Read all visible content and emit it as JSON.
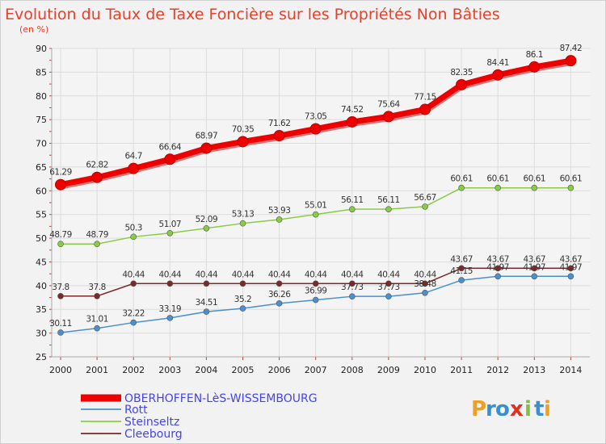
{
  "chart_data": {
    "type": "line",
    "title": "Evolution du Taux de Taxe Foncière sur les Propriétés Non Bâties",
    "subtitle": "(en %)",
    "ylim": [
      25,
      90
    ],
    "yticks": [
      "25",
      "30",
      "35",
      "40",
      "45",
      "50",
      "55",
      "60",
      "65",
      "70",
      "75",
      "80",
      "85",
      "90"
    ],
    "categories": [
      "2000",
      "2001",
      "2002",
      "2003",
      "2004",
      "2005",
      "2006",
      "2007",
      "2008",
      "2009",
      "2010",
      "2011",
      "2012",
      "2013",
      "2014"
    ],
    "series": [
      {
        "name": "OBERHOFFEN-LèS-WISSEMBOURG",
        "color": "#ee0000",
        "values": [
          61.29,
          62.82,
          64.7,
          66.64,
          68.97,
          70.35,
          71.62,
          73.05,
          74.52,
          75.64,
          77.15,
          82.35,
          84.41,
          86.1,
          87.42
        ],
        "labels": [
          "61.29",
          "62.82",
          "64.7",
          "66.64",
          "68.97",
          "70.35",
          "71.62",
          "73.05",
          "74.52",
          "75.64",
          "77.15",
          "82.35",
          "84.41",
          "86.1",
          "87.42"
        ]
      },
      {
        "name": "Rott",
        "color": "#4a90d0",
        "values": [
          30.11,
          31.01,
          32.22,
          33.19,
          34.51,
          35.2,
          36.26,
          36.99,
          37.73,
          37.73,
          38.48,
          41.15,
          41.97,
          41.97,
          41.97
        ],
        "labels": [
          "30.11",
          "31.01",
          "32.22",
          "33.19",
          "34.51",
          "35.2",
          "36.26",
          "36.99",
          "37.73",
          "37.73",
          "38.48",
          "41.15",
          "41.97",
          "41.97",
          "41.97"
        ]
      },
      {
        "name": "Steinseltz",
        "color": "#88cc44",
        "values": [
          48.79,
          48.79,
          50.3,
          51.07,
          52.09,
          53.13,
          53.93,
          55.01,
          56.11,
          56.11,
          56.67,
          60.61,
          60.61,
          60.61,
          60.61
        ],
        "labels": [
          "48.79",
          "48.79",
          "50.3",
          "51.07",
          "52.09",
          "53.13",
          "53.93",
          "55.01",
          "56.11",
          "56.11",
          "56.67",
          "60.61",
          "60.61",
          "60.61",
          "60.61"
        ]
      },
      {
        "name": "Cleebourg",
        "color": "#7a2a2a",
        "values": [
          37.8,
          37.8,
          40.44,
          40.44,
          40.44,
          40.44,
          40.44,
          40.44,
          40.44,
          40.44,
          40.44,
          43.67,
          43.67,
          43.67,
          43.67
        ],
        "labels": [
          "37.8",
          "37.8",
          "40.44",
          "40.44",
          "40.44",
          "40.44",
          "40.44",
          "40.44",
          "40.44",
          "40.44",
          "40.44",
          "43.67",
          "43.67",
          "43.67",
          "43.67"
        ]
      }
    ]
  },
  "logo": {
    "letters": [
      "P",
      "r",
      "o",
      "x",
      "i",
      "t",
      "i"
    ],
    "colors": [
      "#f0a020",
      "#3a8fd0",
      "#3a8fd0",
      "#e03020",
      "#80c040",
      "#3a8fd0",
      "#f0a020"
    ]
  }
}
